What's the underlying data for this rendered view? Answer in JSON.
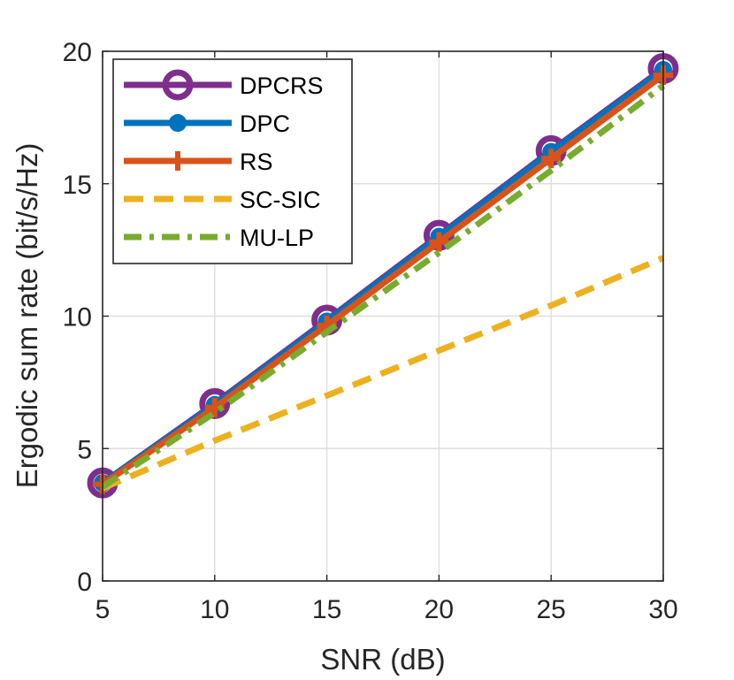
{
  "chart_data": {
    "type": "line",
    "title": "",
    "xlabel": "SNR (dB)",
    "ylabel": "Ergodic sum rate (bit/s/Hz)",
    "x": [
      5,
      10,
      15,
      20,
      25,
      30
    ],
    "xlim": [
      5,
      30
    ],
    "ylim": [
      0,
      20
    ],
    "xticks": [
      5,
      10,
      15,
      20,
      25,
      30
    ],
    "yticks": [
      0,
      5,
      10,
      15,
      20
    ],
    "grid": true,
    "legend_position": "top-left",
    "series": [
      {
        "name": "DPCRS",
        "values": [
          3.7,
          6.7,
          9.85,
          13.05,
          16.25,
          19.35
        ],
        "color": "#7E2F8E",
        "style": "solid",
        "marker": "circle-hollow"
      },
      {
        "name": "DPC",
        "values": [
          3.7,
          6.65,
          9.8,
          13.0,
          16.2,
          19.3
        ],
        "color": "#0072BD",
        "style": "solid",
        "marker": "dot"
      },
      {
        "name": "RS",
        "values": [
          3.65,
          6.55,
          9.65,
          12.8,
          15.95,
          19.1
        ],
        "color": "#D95319",
        "style": "solid",
        "marker": "plus"
      },
      {
        "name": "SC-SIC",
        "values": [
          3.5,
          5.3,
          7.0,
          8.7,
          10.4,
          12.2
        ],
        "color": "#EDB120",
        "style": "dashed",
        "marker": "none"
      },
      {
        "name": "MU-LP",
        "values": [
          3.55,
          6.35,
          9.4,
          12.4,
          15.5,
          18.7
        ],
        "color": "#77AC30",
        "style": "dashdot",
        "marker": "none"
      }
    ]
  }
}
